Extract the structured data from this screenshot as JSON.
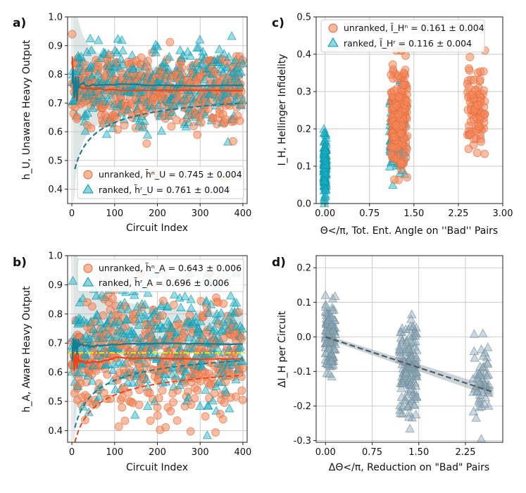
{
  "figure": {
    "colors": {
      "unranked": "#f4865a",
      "ranked": "#18b0c4",
      "d_points": "#8ea8b6",
      "d_fit": "#4a5d6b",
      "threshold": "#d4ef1a"
    }
  },
  "chart_data": [
    {
      "panel": "a)",
      "type": "scatter",
      "xlabel": "Circuit Index",
      "ylabel": "h_U, Unaware Heavy Output",
      "xlim": [
        -10,
        410
      ],
      "ylim": [
        0.35,
        1.0
      ],
      "xticks": [
        "0",
        "100",
        "200",
        "300",
        "400"
      ],
      "yticks": [
        "0.4",
        "0.5",
        "0.6",
        "0.7",
        "0.8",
        "0.9",
        "1.0"
      ],
      "legend": {
        "position": "bottom-right",
        "entries": [
          {
            "series": "unranked",
            "label": "unranked, h̄ⁿ_U = 0.745 ± 0.004"
          },
          {
            "series": "ranked",
            "label": "ranked, h̄ʳ_U = 0.761 ± 0.004"
          }
        ]
      },
      "series": [
        {
          "name": "unranked",
          "n_points": 400,
          "mean": 0.745,
          "sd": 0.085,
          "final_cumulative_mean": 0.745,
          "final_lower_bound": 0.7
        },
        {
          "name": "ranked",
          "n_points": 400,
          "mean": 0.761,
          "sd": 0.08,
          "final_cumulative_mean": 0.761,
          "final_lower_bound": 0.7
        }
      ]
    },
    {
      "panel": "b)",
      "type": "scatter",
      "xlabel": "Circuit Index",
      "ylabel": "h_A, Aware Heavy Output",
      "xlim": [
        -10,
        410
      ],
      "ylim": [
        0.36,
        1.0
      ],
      "xticks": [
        "0",
        "100",
        "200",
        "300",
        "400"
      ],
      "yticks": [
        "0.4",
        "0.5",
        "0.6",
        "0.7",
        "0.8",
        "0.9",
        "1.0"
      ],
      "threshold_line": 0.6667,
      "legend": {
        "position": "top-right",
        "entries": [
          {
            "series": "unranked",
            "label": "unranked, h̄ⁿ_A = 0.643 ± 0.006"
          },
          {
            "series": "ranked",
            "label": "ranked, h̄ʳ_A = 0.696 ± 0.006"
          }
        ]
      },
      "series": [
        {
          "name": "unranked",
          "n_points": 400,
          "mean": 0.643,
          "sd": 0.12,
          "final_cumulative_mean": 0.643,
          "final_lower_bound": 0.59
        },
        {
          "name": "ranked",
          "n_points": 400,
          "mean": 0.696,
          "sd": 0.11,
          "final_cumulative_mean": 0.696,
          "final_lower_bound": 0.64
        }
      ]
    },
    {
      "panel": "c)",
      "type": "scatter",
      "xlabel": "Θ</π, Tot. Ent. Angle on ''Bad'' Pairs",
      "ylabel": "I_H, Hellinger Infidelity",
      "xlim": [
        -0.15,
        3.0
      ],
      "ylim": [
        0,
        0.5
      ],
      "xticks": [
        "0.00",
        "0.75",
        "1.50",
        "2.25",
        "3.00"
      ],
      "yticks": [
        "0.0",
        "0.1",
        "0.2",
        "0.3",
        "0.4",
        "0.5"
      ],
      "legend": {
        "position": "top-left",
        "entries": [
          {
            "series": "unranked",
            "label": "unranked, Ī_Hⁿ = 0.161 ± 0.004"
          },
          {
            "series": "ranked",
            "label": "ranked, Ī_Hʳ = 0.116 ± 0.004"
          }
        ]
      },
      "clusters": [
        {
          "series": "ranked",
          "x_center": 0.0,
          "x_spread": 0.02,
          "y_range": [
            0.0,
            0.2
          ],
          "n": 150
        },
        {
          "series": "ranked",
          "x_center": 1.22,
          "x_spread": 0.13,
          "y_range": [
            0.05,
            0.33
          ],
          "n": 200
        },
        {
          "series": "unranked",
          "x_center": 1.25,
          "x_spread": 0.14,
          "y_range": [
            0.05,
            0.41
          ],
          "n": 200
        },
        {
          "series": "unranked",
          "x_center": 2.55,
          "x_spread": 0.15,
          "y_range": [
            0.09,
            0.41
          ],
          "n": 90
        }
      ]
    },
    {
      "panel": "d)",
      "type": "scatter",
      "xlabel": "ΔΘ</π, Reduction on \"Bad\" Pairs",
      "ylabel": "ΔI_H per Circuit",
      "xlim": [
        -0.15,
        2.85
      ],
      "ylim": [
        -0.305,
        0.235
      ],
      "xticks": [
        "0.00",
        "0.75",
        "1.50",
        "2.25"
      ],
      "yticks": [
        "-0.3",
        "-0.2",
        "-0.1",
        "0.0",
        "0.1",
        "0.2"
      ],
      "fit": {
        "x": [
          0.0,
          2.7
        ],
        "y": [
          0.0,
          -0.16
        ]
      },
      "clusters": [
        {
          "x_center": 0.07,
          "x_spread": 0.09,
          "y_mean": 0.0,
          "y_sd": 0.06,
          "n": 110
        },
        {
          "x_center": 1.33,
          "x_spread": 0.14,
          "y_mean": -0.09,
          "y_sd": 0.07,
          "n": 140
        },
        {
          "x_center": 2.5,
          "x_spread": 0.13,
          "y_mean": -0.13,
          "y_sd": 0.06,
          "n": 55
        }
      ]
    }
  ]
}
